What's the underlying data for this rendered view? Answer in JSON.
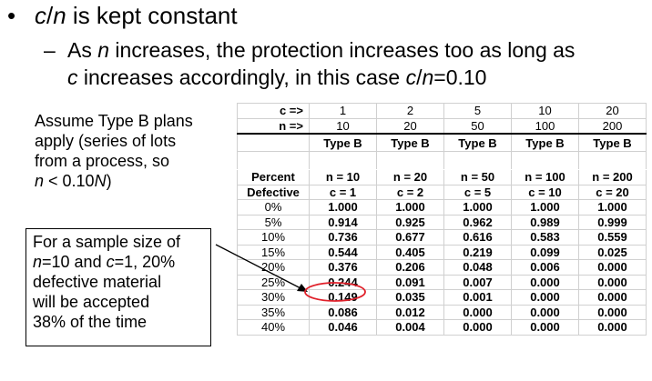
{
  "bullet": {
    "symbol": "•",
    "var_c": "c",
    "slash": "/",
    "var_n": "n",
    "rest": " is kept constant"
  },
  "sub": {
    "dash": "–",
    "line1_a": "As ",
    "line1_n": "n",
    "line1_b": " increases, the protection increases too as long as",
    "line2_c": "c",
    "line2_b": " increases accordingly, in this case ",
    "line2_c2": "c",
    "line2_slash": "/",
    "line2_n": "n",
    "line2_val": "=0.10"
  },
  "assume": {
    "l1": "Assume Type B plans",
    "l2": "apply (series of lots",
    "l3": "from a process, so",
    "l4_n": "n",
    "l4_rest": " < 0.10",
    "l4_N": "N",
    "l4_close": ")"
  },
  "callout": {
    "l1": "For a sample size of",
    "l2_n": "n",
    "l2_rest": "=10 and ",
    "l2_c": "c",
    "l2_end": "=1, 20%",
    "l3": "defective material",
    "l4": "will be accepted",
    "l5": "38% of the time"
  },
  "table": {
    "c_label": "c =>",
    "n_label": "n =>",
    "c_values": [
      "1",
      "2",
      "5",
      "10",
      "20"
    ],
    "n_values": [
      "10",
      "20",
      "50",
      "100",
      "200"
    ],
    "type_values": [
      "Type B",
      "Type B",
      "Type B",
      "Type B",
      "Type B"
    ],
    "header_left1": "Percent",
    "header_left2": "Defective",
    "plan_n": [
      "n = 10",
      "n = 20",
      "n = 50",
      "n = 100",
      "n = 200"
    ],
    "plan_c": [
      "c = 1",
      "c = 2",
      "c = 5",
      "c = 10",
      "c = 20"
    ],
    "rows": [
      {
        "pct": "0%",
        "v": [
          "1.000",
          "1.000",
          "1.000",
          "1.000",
          "1.000"
        ]
      },
      {
        "pct": "5%",
        "v": [
          "0.914",
          "0.925",
          "0.962",
          "0.989",
          "0.999"
        ]
      },
      {
        "pct": "10%",
        "v": [
          "0.736",
          "0.677",
          "0.616",
          "0.583",
          "0.559"
        ]
      },
      {
        "pct": "15%",
        "v": [
          "0.544",
          "0.405",
          "0.219",
          "0.099",
          "0.025"
        ]
      },
      {
        "pct": "20%",
        "v": [
          "0.376",
          "0.206",
          "0.048",
          "0.006",
          "0.000"
        ]
      },
      {
        "pct": "25%",
        "v": [
          "0.244",
          "0.091",
          "0.007",
          "0.000",
          "0.000"
        ]
      },
      {
        "pct": "30%",
        "v": [
          "0.149",
          "0.035",
          "0.001",
          "0.000",
          "0.000"
        ]
      },
      {
        "pct": "35%",
        "v": [
          "0.086",
          "0.012",
          "0.000",
          "0.000",
          "0.000"
        ]
      },
      {
        "pct": "40%",
        "v": [
          "0.046",
          "0.004",
          "0.000",
          "0.000",
          "0.000"
        ]
      }
    ]
  },
  "colors": {
    "highlight_ellipse": "#e0202a",
    "arrow": "#000000"
  }
}
